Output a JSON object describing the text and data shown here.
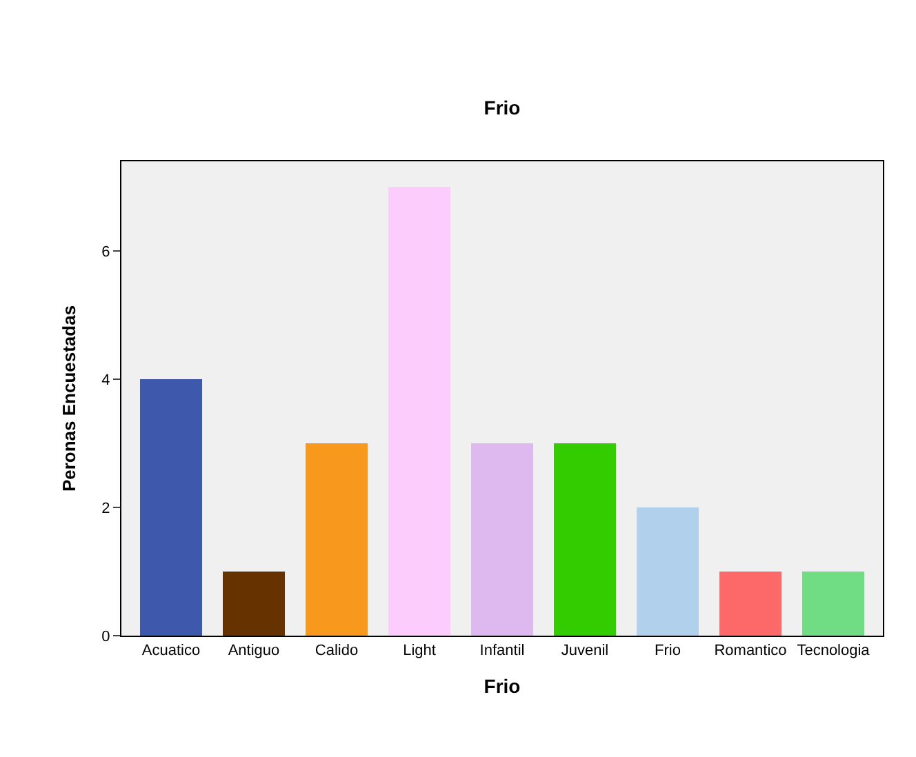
{
  "chart_data": {
    "type": "bar",
    "title": "Frio",
    "xlabel": "Frio",
    "ylabel": "Peronas Encuestadas",
    "categories": [
      "Acuatico",
      "Antiguo",
      "Calido",
      "Light",
      "Infantil",
      "Juvenil",
      "Frio",
      "Romantico",
      "Tecnologia"
    ],
    "values": [
      4,
      1,
      3,
      7,
      3,
      3,
      2,
      1,
      1
    ],
    "colors": [
      "#3e58ac",
      "#663300",
      "#f8981d",
      "#fccdfc",
      "#ddb9f0",
      "#33cc00",
      "#b0d0ec",
      "#fd6868",
      "#70dc84"
    ],
    "ylim": [
      0,
      7.4
    ],
    "yticks": [
      0,
      2,
      4,
      6
    ],
    "grid": false
  }
}
